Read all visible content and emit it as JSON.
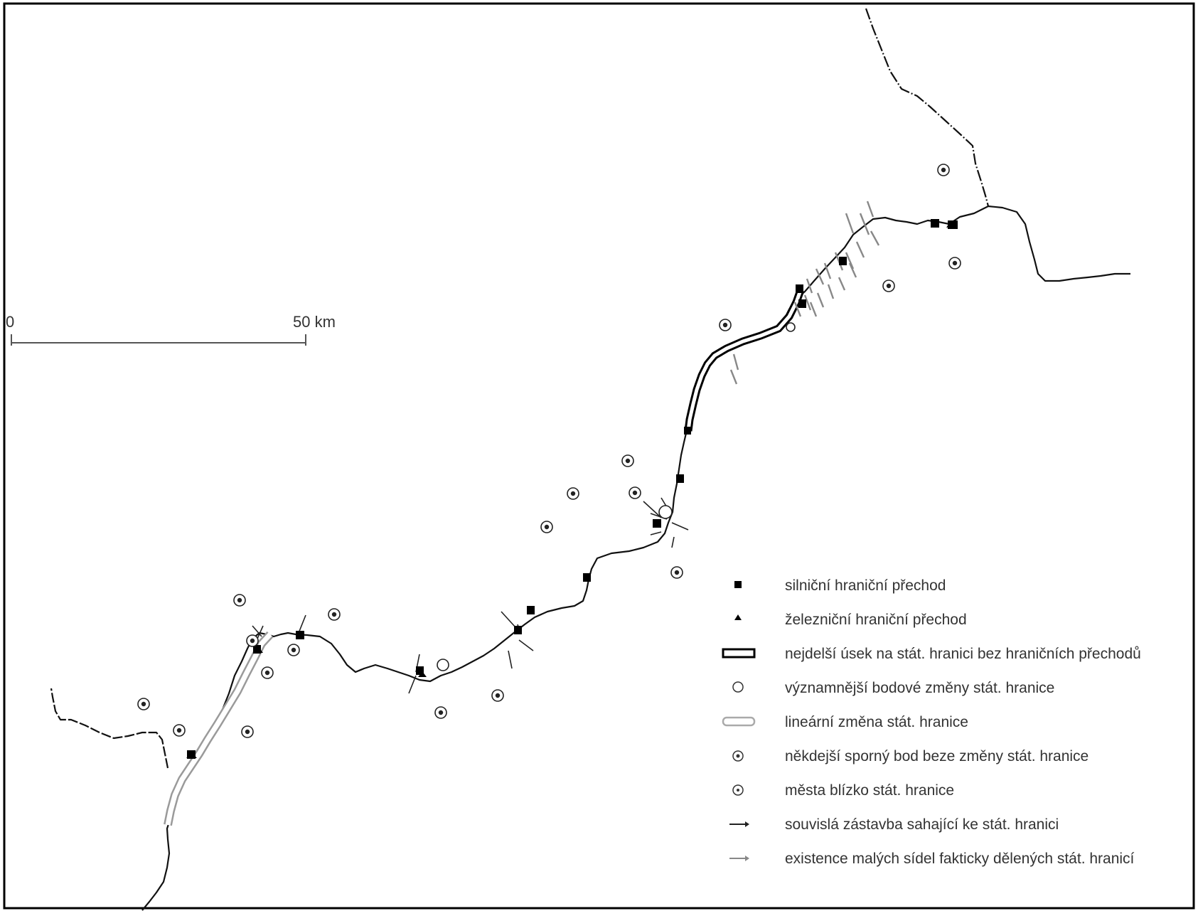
{
  "scale_bar": {
    "start_label": "0",
    "end_label": "50 km"
  },
  "legend": {
    "items": [
      {
        "symbol": "filled-square",
        "label": "silniční hraniční přechod"
      },
      {
        "symbol": "triangle",
        "label": "železniční hraniční přechod"
      },
      {
        "symbol": "double-line-rect",
        "label": "nejdelší úsek na stát. hranici bez hraničních přechodů"
      },
      {
        "symbol": "open-circle",
        "label": "významnější bodové změny stát. hranice"
      },
      {
        "symbol": "grey-double-line",
        "label": "lineární změna stát. hranice"
      },
      {
        "symbol": "circle-dot",
        "label": "někdejší sporný bod beze změny stát. hranice"
      },
      {
        "symbol": "circle-dot-small",
        "label": "města blízko stát. hranice"
      },
      {
        "symbol": "arrow-black",
        "label": "souvislá zástavba sahající ke stát. hranici"
      },
      {
        "symbol": "arrow-grey",
        "label": "existence malých sídel fakticky dělených stát. hranicí"
      }
    ]
  },
  "colors": {
    "border_line": "#111111",
    "grey_change": "#9a9a9a",
    "frame": "#000000"
  }
}
